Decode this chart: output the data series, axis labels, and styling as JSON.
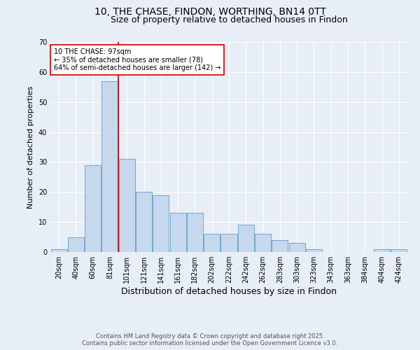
{
  "title": "10, THE CHASE, FINDON, WORTHING, BN14 0TT",
  "subtitle": "Size of property relative to detached houses in Findon",
  "xlabel": "Distribution of detached houses by size in Findon",
  "ylabel": "Number of detached properties",
  "bar_labels": [
    "20sqm",
    "40sqm",
    "60sqm",
    "81sqm",
    "101sqm",
    "121sqm",
    "141sqm",
    "161sqm",
    "182sqm",
    "202sqm",
    "222sqm",
    "242sqm",
    "262sqm",
    "283sqm",
    "303sqm",
    "323sqm",
    "343sqm",
    "363sqm",
    "384sqm",
    "404sqm",
    "424sqm"
  ],
  "bar_values": [
    1,
    5,
    29,
    57,
    31,
    20,
    19,
    13,
    13,
    6,
    6,
    9,
    6,
    4,
    3,
    1,
    0,
    0,
    0,
    1,
    1
  ],
  "bar_color": "#c5d8ed",
  "bar_edge_color": "#6fa8d0",
  "ylim": [
    0,
    70
  ],
  "yticks": [
    0,
    10,
    20,
    30,
    40,
    50,
    60,
    70
  ],
  "vline_index": 3.5,
  "annotation_line1": "10 THE CHASE: 97sqm",
  "annotation_line2": "← 35% of detached houses are smaller (78)",
  "annotation_line3": "64% of semi-detached houses are larger (142) →",
  "vline_color": "#cc0000",
  "footer_line1": "Contains HM Land Registry data © Crown copyright and database right 2025.",
  "footer_line2": "Contains public sector information licensed under the Open Government Licence v3.0.",
  "background_color": "#e8eef5",
  "plot_background": "#e8eef5",
  "title_fontsize": 10,
  "subtitle_fontsize": 9,
  "xlabel_fontsize": 9,
  "ylabel_fontsize": 8,
  "tick_fontsize": 7,
  "annotation_fontsize": 7,
  "footer_fontsize": 6,
  "annotation_box_color": "white",
  "annotation_box_edge": "#cc0000",
  "grid_color": "white",
  "grid_linewidth": 0.8
}
